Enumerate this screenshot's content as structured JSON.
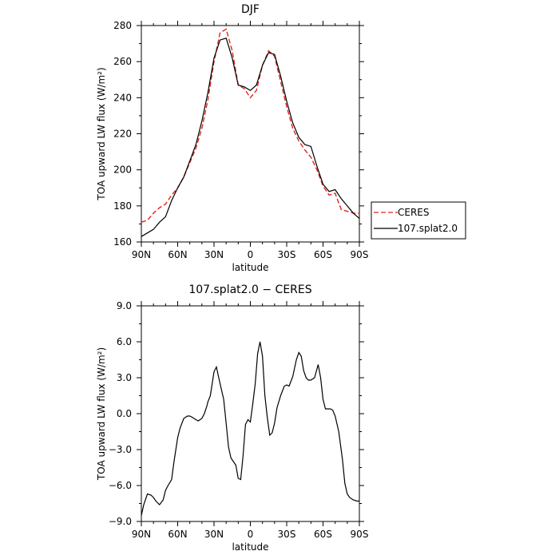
{
  "chart_data": [
    {
      "type": "line",
      "title": "DJF",
      "xlabel": "latitude",
      "ylabel": "TOA upward LW flux (W/m²)",
      "ylim": [
        160,
        280
      ],
      "xlim": [
        -90,
        90
      ],
      "x_ticks": [
        -90,
        -60,
        -30,
        0,
        30,
        60,
        90
      ],
      "x_tick_labels": [
        "90N",
        "60N",
        "30N",
        "0",
        "30S",
        "60S",
        "90S"
      ],
      "y_ticks": [
        160,
        180,
        200,
        220,
        240,
        260,
        280
      ],
      "y_tick_labels": [
        "160",
        "180",
        "200",
        "220",
        "240",
        "260",
        "280"
      ],
      "grid": false,
      "legend_position": "right",
      "x": [
        -90,
        -85,
        -80,
        -75,
        -70,
        -65,
        -60,
        -55,
        -50,
        -45,
        -40,
        -35,
        -30,
        -25,
        -20,
        -15,
        -10,
        -5,
        0,
        5,
        10,
        15,
        20,
        25,
        30,
        35,
        40,
        45,
        50,
        55,
        60,
        65,
        70,
        75,
        80,
        85,
        90
      ],
      "series": [
        {
          "name": "CERES",
          "color": "#e0251f",
          "dash": "dashed",
          "values": [
            171,
            172,
            176,
            179,
            181,
            186,
            190,
            196,
            204,
            212,
            223,
            239,
            260,
            276,
            278,
            266,
            247,
            245,
            240,
            244,
            258,
            266,
            263,
            249,
            235,
            223,
            216,
            211,
            207,
            200,
            191,
            186,
            187,
            178,
            177,
            176,
            176
          ]
        },
        {
          "name": "107.splat2.0",
          "color": "#000000",
          "dash": "solid",
          "values": [
            163,
            165,
            167,
            171,
            174,
            183,
            190,
            196,
            205,
            214,
            227,
            243,
            262,
            272,
            273,
            262,
            247,
            246,
            244,
            247,
            258,
            265,
            264,
            252,
            238,
            226,
            218,
            214,
            213,
            202,
            192,
            188,
            189,
            184,
            180,
            176,
            173
          ]
        }
      ]
    },
    {
      "type": "line",
      "title": "107.splat2.0 − CERES",
      "xlabel": "latitude",
      "ylabel": "TOA upward LW flux (W/m²)",
      "ylim": [
        -9.0,
        9.0
      ],
      "xlim": [
        -90,
        90
      ],
      "x_ticks": [
        -90,
        -60,
        -30,
        0,
        30,
        60,
        90
      ],
      "x_tick_labels": [
        "90N",
        "60N",
        "30N",
        "0",
        "30S",
        "60S",
        "90S"
      ],
      "y_ticks": [
        -9,
        -6,
        -3,
        0,
        3,
        6,
        9
      ],
      "y_tick_labels": [
        "−9.0",
        "−6.0",
        "−3.0",
        "0.0",
        "3.0",
        "6.0",
        "9.0"
      ],
      "grid": false,
      "x": [
        -90,
        -88,
        -85,
        -82,
        -80,
        -78,
        -75,
        -72,
        -70,
        -68,
        -65,
        -63,
        -60,
        -58,
        -55,
        -52,
        -50,
        -48,
        -45,
        -43,
        -40,
        -38,
        -36,
        -35,
        -33,
        -30,
        -28,
        -25,
        -22,
        -20,
        -18,
        -16,
        -14,
        -12,
        -10,
        -8,
        -6,
        -4,
        -2,
        0,
        2,
        4,
        6,
        8,
        10,
        12,
        14,
        16,
        18,
        20,
        22,
        25,
        28,
        30,
        32,
        35,
        38,
        40,
        42,
        44,
        46,
        48,
        50,
        53,
        56,
        58,
        60,
        62,
        64,
        66,
        68,
        70,
        73,
        76,
        78,
        80,
        82,
        85,
        88,
        90
      ],
      "series": [
        {
          "name": "107.splat2.0 − CERES",
          "color": "#000000",
          "dash": "solid",
          "values": [
            -8.5,
            -7.6,
            -6.7,
            -6.8,
            -7.0,
            -7.3,
            -7.6,
            -7.2,
            -6.4,
            -6.0,
            -5.5,
            -4.0,
            -2.0,
            -1.2,
            -0.4,
            -0.2,
            -0.2,
            -0.3,
            -0.5,
            -0.6,
            -0.4,
            0.0,
            0.6,
            1.0,
            1.5,
            3.5,
            3.9,
            2.5,
            1.2,
            -0.8,
            -2.8,
            -3.7,
            -4.0,
            -4.3,
            -5.4,
            -5.5,
            -3.5,
            -0.9,
            -0.5,
            -0.7,
            0.8,
            2.5,
            5.0,
            6.0,
            4.8,
            1.5,
            -0.3,
            -1.8,
            -1.6,
            -0.8,
            0.5,
            1.5,
            2.3,
            2.4,
            2.3,
            3.1,
            4.5,
            5.1,
            4.8,
            3.6,
            3.0,
            2.8,
            2.8,
            3.0,
            4.1,
            3.0,
            1.2,
            0.4,
            0.4,
            0.4,
            0.3,
            -0.2,
            -1.5,
            -3.8,
            -5.8,
            -6.7,
            -7.0,
            -7.2,
            -7.3,
            -7.3
          ]
        }
      ]
    }
  ]
}
